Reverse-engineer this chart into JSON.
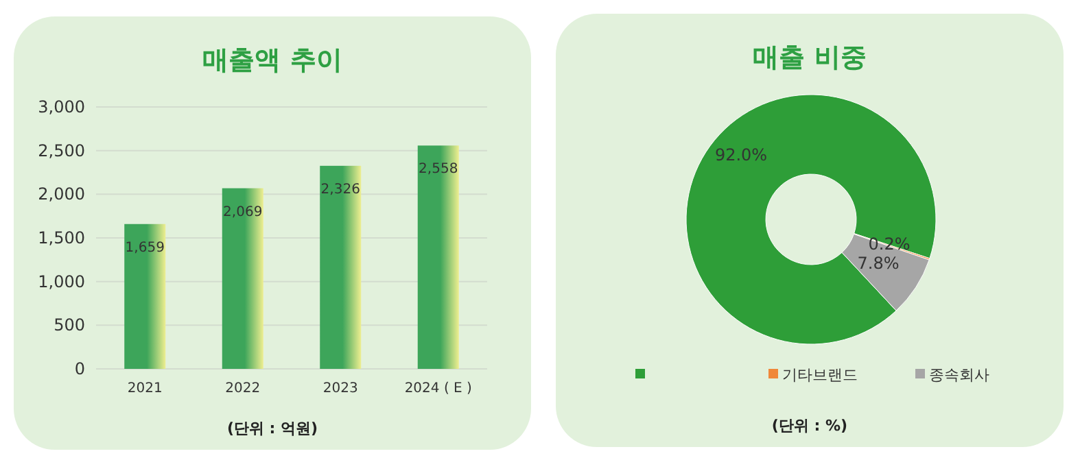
{
  "chart_data": [
    {
      "type": "bar",
      "title": "매출액 추이",
      "categories": [
        "2021",
        "2022",
        "2023",
        "2024 ( E )"
      ],
      "series": [
        {
          "color": "#3da55a",
          "values": [
            1659,
            2069,
            2326,
            2558
          ]
        }
      ],
      "ylim": [
        0,
        3000
      ],
      "yticks": [
        0,
        500,
        {
          "value": 1000,
          "label": "1,000"
        },
        {
          "value": 1500,
          "label": "1,500"
        },
        {
          "value": 2000,
          "label": "2,000"
        },
        {
          "value": 2500,
          "label": "2,500"
        },
        {
          "value": 3000,
          "label": "3,000"
        }
      ],
      "grid": "y",
      "value_labels": [
        "1,659",
        "2,069",
        "2,326",
        "2,558"
      ],
      "annotations": [
        "(단위 : 억원)"
      ]
    },
    {
      "type": "donut",
      "title": "매출 비중",
      "categories": [
        null,
        "기타브랜드",
        "종속회사"
      ],
      "values": [
        92.0,
        0.2,
        7.8
      ],
      "colors": [
        "#2e9e38",
        "#f0883a",
        "#a6a6a6"
      ],
      "value_labels": [
        "92.0%",
        "0.2%",
        "7.8%"
      ],
      "legend": "bottom",
      "annotations": [
        "(단위 : %)"
      ]
    }
  ]
}
